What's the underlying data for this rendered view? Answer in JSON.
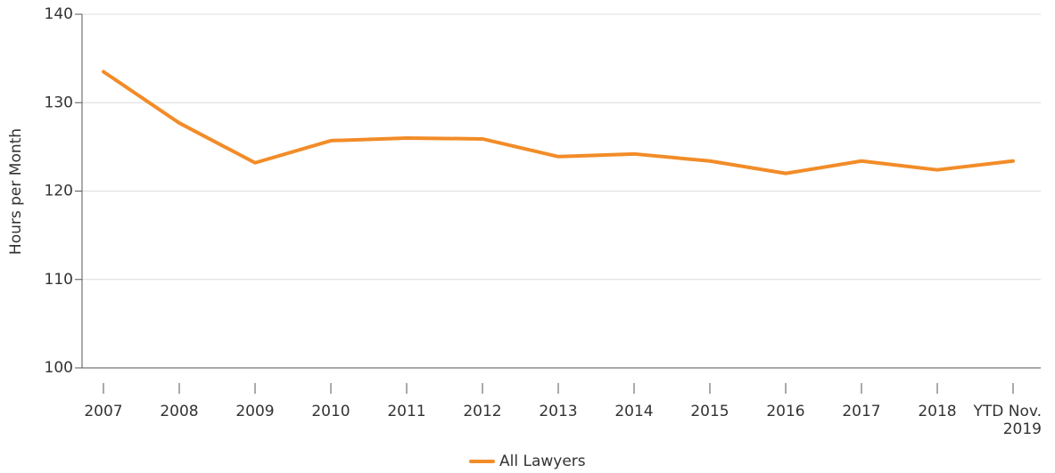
{
  "chart_data": {
    "type": "line",
    "y_label": "Hours per Month",
    "categories": [
      "2007",
      "2008",
      "2009",
      "2010",
      "2011",
      "2012",
      "2013",
      "2014",
      "2015",
      "2016",
      "2017",
      "2018",
      "YTD Nov. 2019"
    ],
    "series": [
      {
        "name": "All Lawyers",
        "color": "#f28c28",
        "values": [
          133.5,
          127.7,
          123.2,
          125.7,
          126.0,
          125.9,
          123.9,
          124.2,
          123.4,
          122.0,
          123.4,
          122.4,
          123.4
        ]
      }
    ],
    "ylim": [
      100,
      140
    ],
    "yticks": [
      100,
      110,
      120,
      130,
      140
    ],
    "grid": true,
    "legend": "bottom"
  }
}
